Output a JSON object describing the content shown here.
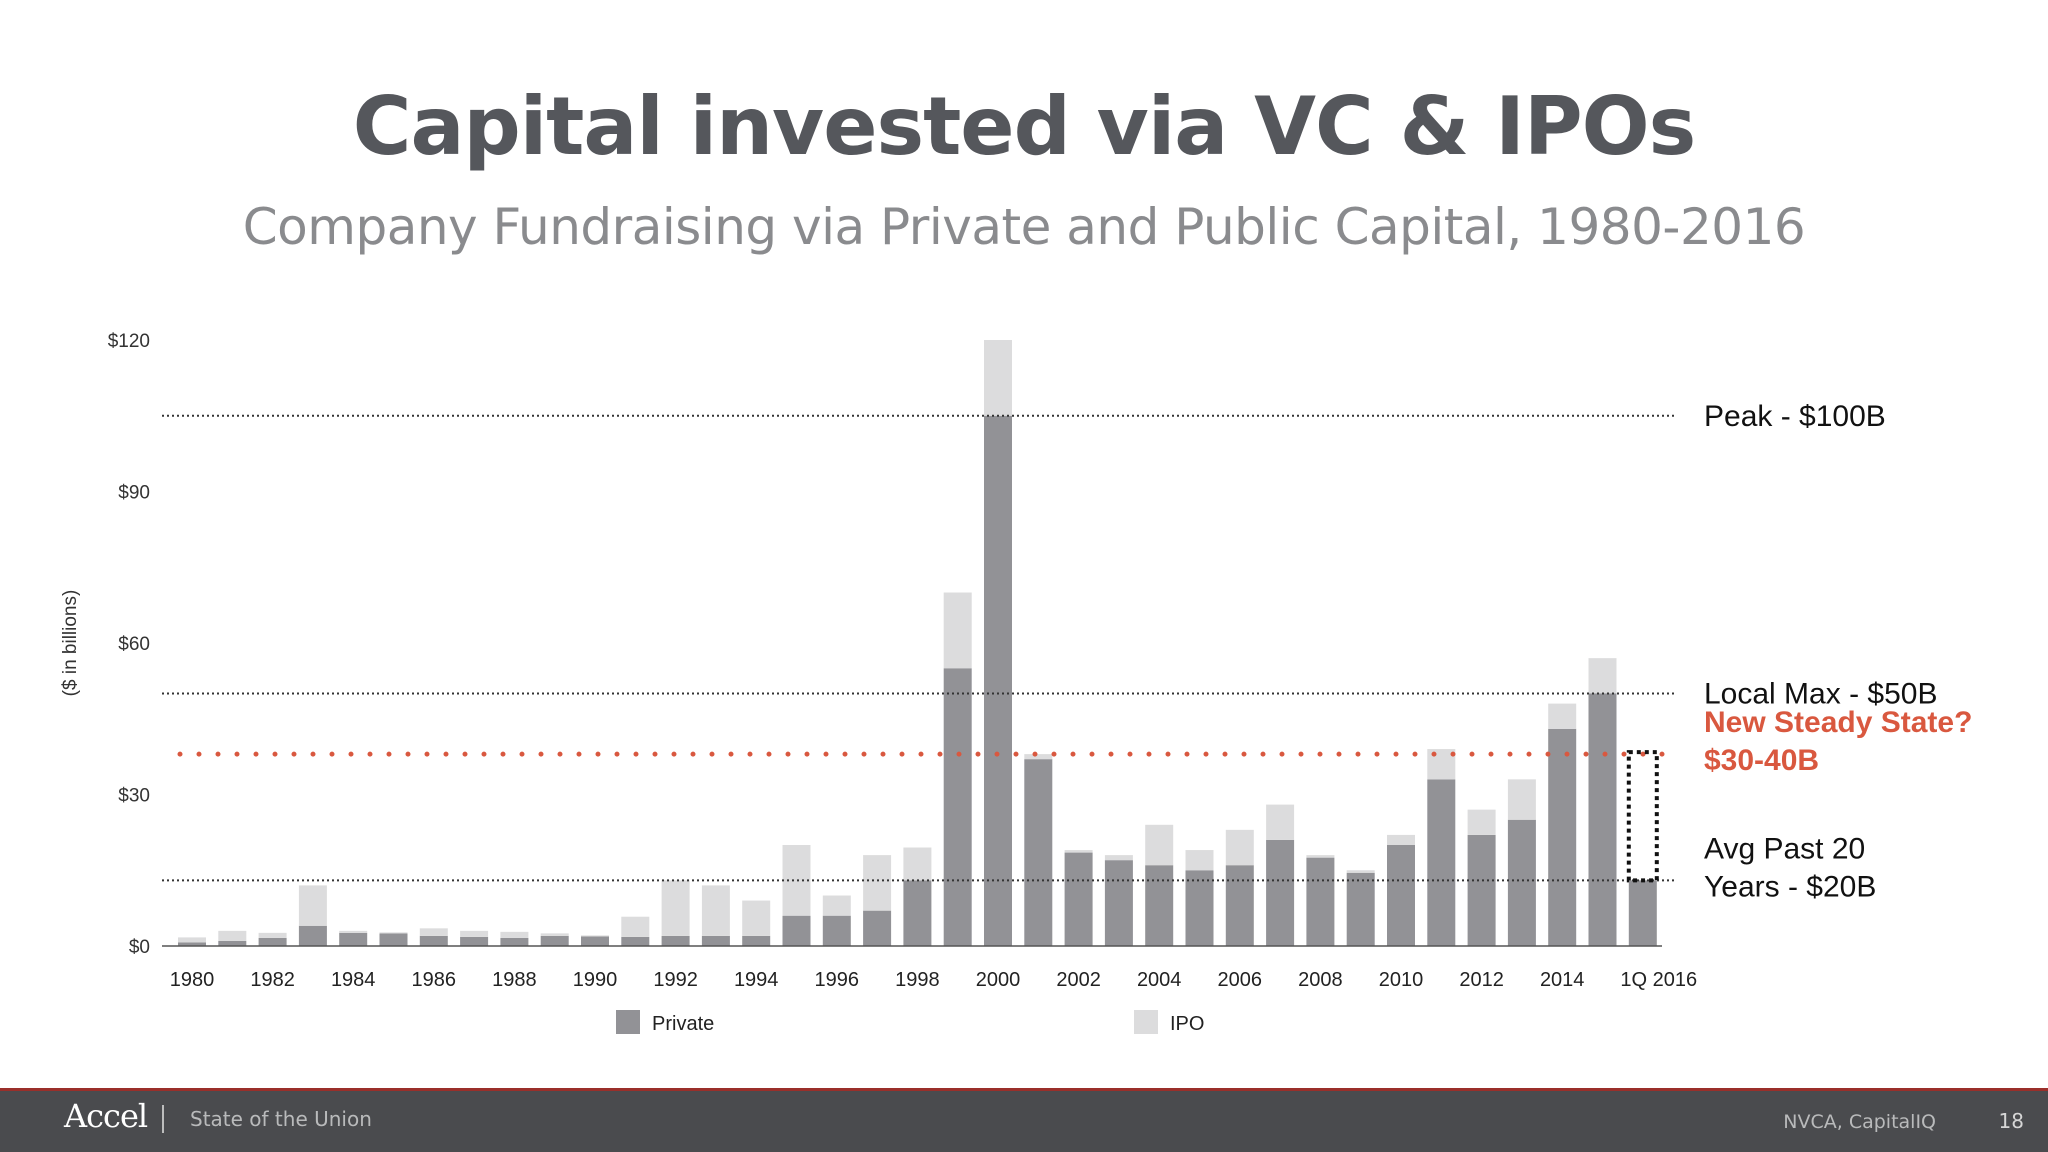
{
  "slide": {
    "title": "Capital invested via VC & IPOs",
    "subtitle": "Company Fundraising via Private and Public Capital, 1980-2016"
  },
  "footer": {
    "logo": "Accel",
    "deck_name": "State of the Union",
    "source": "NVCA, CapitalIQ",
    "page_number": "18"
  },
  "chart_data": {
    "type": "bar",
    "stacked": true,
    "title": "",
    "xlabel": "",
    "ylabel": "($ in billions)",
    "ylim": [
      0,
      120
    ],
    "ytick_values": [
      0,
      30,
      60,
      90,
      120
    ],
    "ytick_labels": [
      "$0",
      "$30",
      "$60",
      "$90",
      "$120"
    ],
    "categories": [
      "1980",
      "1981",
      "1982",
      "1983",
      "1984",
      "1985",
      "1986",
      "1987",
      "1988",
      "1989",
      "1990",
      "1991",
      "1992",
      "1993",
      "1994",
      "1995",
      "1996",
      "1997",
      "1998",
      "1999",
      "2000",
      "2001",
      "2002",
      "2003",
      "2004",
      "2005",
      "2006",
      "2007",
      "2008",
      "2009",
      "2010",
      "2011",
      "2012",
      "2013",
      "2014",
      "2015",
      "1Q 2016"
    ],
    "xtick_labels": [
      "1980",
      "1982",
      "1984",
      "1986",
      "1988",
      "1990",
      "1992",
      "1994",
      "1996",
      "1998",
      "2000",
      "2002",
      "2004",
      "2006",
      "2008",
      "2010",
      "2012",
      "2014",
      "1Q 2016"
    ],
    "series": [
      {
        "name": "Private",
        "color": "#929296",
        "values": [
          0.7,
          1.0,
          1.6,
          4.0,
          2.6,
          2.5,
          2.0,
          1.8,
          1.6,
          2.0,
          1.9,
          1.8,
          2.0,
          2.0,
          2.0,
          6.0,
          6.0,
          7.0,
          13.0,
          55.0,
          105.0,
          37.0,
          18.5,
          17.0,
          16.0,
          15.0,
          16.0,
          21.0,
          17.5,
          14.5,
          20.0,
          33.0,
          22.0,
          25.0,
          43.0,
          50.0,
          13.0
        ]
      },
      {
        "name": "IPO",
        "color": "#dcdcdd",
        "values": [
          1.0,
          2.0,
          1.0,
          8.0,
          0.4,
          0.2,
          1.5,
          1.2,
          1.2,
          0.5,
          0.2,
          4.0,
          11.0,
          10.0,
          7.0,
          14.0,
          4.0,
          11.0,
          6.5,
          15.0,
          15.0,
          1.0,
          0.5,
          1.0,
          8.0,
          4.0,
          7.0,
          7.0,
          0.5,
          0.5,
          2.0,
          6.0,
          5.0,
          8.0,
          5.0,
          7.0,
          0
        ]
      }
    ],
    "reference_lines": [
      {
        "value": 105,
        "label_lines": [
          "Peak - $100B"
        ],
        "style": "dotted",
        "color": "#333333",
        "label_color": "#111111",
        "label_bold": false
      },
      {
        "value": 50,
        "label_lines": [
          "Local Max - $50B"
        ],
        "style": "dotted",
        "color": "#333333",
        "label_color": "#111111",
        "label_bold": false
      },
      {
        "value": 38,
        "label_lines": [
          "New Steady State?",
          "$30-40B"
        ],
        "style": "dotted-bold",
        "color": "#d9583f",
        "label_color": "#d9583f",
        "label_bold": true
      },
      {
        "value": 13,
        "label_lines": [
          "Avg Past 20",
          "Years - $20B"
        ],
        "style": "dotted",
        "color": "#333333",
        "label_color": "#111111",
        "label_bold": false
      }
    ],
    "highlight_box": {
      "category": "1Q 2016",
      "from": 13,
      "to": 38,
      "style": "dotted"
    },
    "legend": {
      "position": "bottom",
      "entries": [
        "Private",
        "IPO"
      ]
    }
  }
}
